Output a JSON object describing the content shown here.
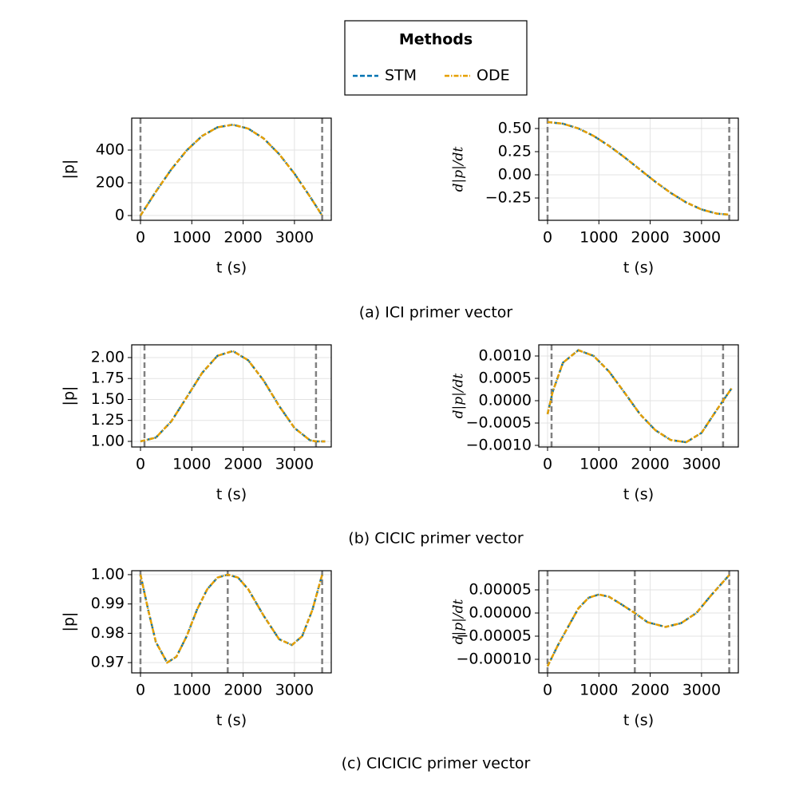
{
  "legend_title": "Methods",
  "captions": [
    "(a) ICI primer vector",
    "(b) CICIC primer vector",
    "(c) CICICIC primer vector"
  ],
  "chart_data": [
    {
      "type": "line",
      "xlabel": "t (s)",
      "ylabel": "|p|",
      "grid": true,
      "xlim": [
        -171,
        3717
      ],
      "ylim": [
        -29,
        595
      ],
      "xticks": [
        0,
        1000,
        2000,
        3000
      ],
      "yticks": [
        0,
        200,
        400
      ],
      "vlines": [
        0,
        3540
      ],
      "x": [
        0,
        300,
        600,
        900,
        1200,
        1500,
        1800,
        2100,
        2400,
        2700,
        3000,
        3300,
        3540
      ],
      "series": [
        {
          "name": "STM",
          "color": "#0072b2",
          "dash": "6 3",
          "values": [
            0,
            146,
            282,
            398,
            486,
            539,
            555,
            531,
            471,
            376,
            256,
            117,
            0
          ]
        },
        {
          "name": "ODE",
          "color": "#e69f00",
          "dash": "6 2 1.5 2",
          "values": [
            0,
            146,
            282,
            398,
            486,
            539,
            555,
            531,
            471,
            376,
            256,
            117,
            0
          ]
        }
      ]
    },
    {
      "type": "line",
      "xlabel": "t (s)",
      "ylabel": "d|p|/dt",
      "grid": true,
      "xlim": [
        -171,
        3717
      ],
      "ylim": [
        -0.491,
        0.612
      ],
      "xticks": [
        0,
        1000,
        2000,
        3000
      ],
      "yticks": [
        {
          "value": 0.5,
          "label": "0.50"
        },
        0.25,
        {
          "value": 0,
          "label": "0.00"
        },
        {
          "value": -0.25,
          "label": "−0.25"
        }
      ],
      "vlines": [
        0,
        3540
      ],
      "x": [
        0,
        300,
        600,
        900,
        1200,
        1500,
        1800,
        2100,
        2400,
        2700,
        3000,
        3300,
        3540
      ],
      "series": [
        {
          "name": "STM",
          "color": "#0072b2",
          "dash": "6 3",
          "values": [
            0.57,
            0.552,
            0.501,
            0.419,
            0.312,
            0.189,
            0.057,
            -0.075,
            -0.195,
            -0.298,
            -0.374,
            -0.419,
            -0.43
          ]
        },
        {
          "name": "ODE",
          "color": "#e69f00",
          "dash": "6 2 1.5 2",
          "values": [
            0.57,
            0.552,
            0.501,
            0.419,
            0.312,
            0.189,
            0.057,
            -0.075,
            -0.195,
            -0.298,
            -0.374,
            -0.419,
            -0.43
          ]
        }
      ]
    },
    {
      "type": "line",
      "xlabel": "t (s)",
      "ylabel": "|p|",
      "grid": true,
      "xlim": [
        -171,
        3717
      ],
      "ylim": [
        0.933,
        2.152
      ],
      "xticks": [
        0,
        1000,
        2000,
        3000
      ],
      "yticks": [
        {
          "value": 1,
          "label": "1.00"
        },
        1.25,
        {
          "value": 1.5,
          "label": "1.50"
        },
        1.75,
        {
          "value": 2,
          "label": "2.00"
        }
      ],
      "vlines": [
        78,
        3420
      ],
      "x": [
        0,
        300,
        600,
        900,
        1200,
        1500,
        1800,
        2100,
        2400,
        2700,
        3000,
        3300,
        3420,
        3600
      ],
      "series": [
        {
          "name": "STM",
          "color": "#0072b2",
          "dash": "6 3",
          "values": [
            1.0,
            1.045,
            1.238,
            1.525,
            1.816,
            2.021,
            2.078,
            1.967,
            1.725,
            1.424,
            1.16,
            1.014,
            1.0,
            1.0
          ]
        },
        {
          "name": "ODE",
          "color": "#e69f00",
          "dash": "6 2 1.5 2",
          "values": [
            1.0,
            1.045,
            1.238,
            1.525,
            1.816,
            2.021,
            2.078,
            1.967,
            1.725,
            1.424,
            1.16,
            1.014,
            1.0,
            1.0
          ]
        }
      ]
    },
    {
      "type": "line",
      "xlabel": "t (s)",
      "ylabel": "d|p|/dt",
      "grid": true,
      "xlim": [
        -171,
        3717
      ],
      "ylim": [
        -0.001036,
        0.00125
      ],
      "xticks": [
        0,
        1000,
        2000,
        3000
      ],
      "yticks": [
        {
          "value": 0.001,
          "label": "0.0010"
        },
        0.0005,
        {
          "value": 0,
          "label": "0.0000"
        },
        {
          "value": -0.0005,
          "label": "−0.0005"
        },
        {
          "value": -0.001,
          "label": "−0.0010"
        }
      ],
      "vlines": [
        78,
        3420
      ],
      "x": [
        0,
        100,
        300,
        600,
        900,
        1200,
        1500,
        1800,
        2100,
        2400,
        2700,
        3000,
        3300,
        3600
      ],
      "series": [
        {
          "name": "STM",
          "color": "#0072b2",
          "dash": "6 3",
          "values": [
            -0.0003,
            0.0002,
            0.00085,
            0.00113,
            0.001,
            0.00065,
            0.00018,
            -0.0003,
            -0.00066,
            -0.00088,
            -0.00093,
            -0.00072,
            -0.0002,
            0.0003
          ]
        },
        {
          "name": "ODE",
          "color": "#e69f00",
          "dash": "6 2 1.5 2",
          "values": [
            -0.0003,
            0.0002,
            0.00085,
            0.00113,
            0.001,
            0.00065,
            0.00018,
            -0.0003,
            -0.00066,
            -0.00088,
            -0.00093,
            -0.00072,
            -0.0002,
            0.0003
          ]
        }
      ]
    },
    {
      "type": "line",
      "xlabel": "t (s)",
      "ylabel": "|p|",
      "grid": true,
      "xlim": [
        -171,
        3717
      ],
      "ylim": [
        0.9665,
        1.00134
      ],
      "xticks": [
        0,
        1000,
        2000,
        3000
      ],
      "yticks": [
        0.97,
        0.98,
        0.99,
        {
          "value": 1,
          "label": "1.00"
        }
      ],
      "vlines": [
        0,
        1700,
        3540
      ],
      "x": [
        0,
        150,
        300,
        520,
        700,
        900,
        1100,
        1300,
        1500,
        1700,
        1900,
        2100,
        2400,
        2700,
        2950,
        3150,
        3350,
        3540
      ],
      "series": [
        {
          "name": "STM",
          "color": "#0072b2",
          "dash": "6 3",
          "values": [
            1.0,
            0.988,
            0.977,
            0.97,
            0.972,
            0.979,
            0.988,
            0.995,
            0.999,
            1.0,
            0.999,
            0.995,
            0.986,
            0.978,
            0.976,
            0.979,
            0.988,
            1.0
          ]
        },
        {
          "name": "ODE",
          "color": "#e69f00",
          "dash": "6 2 1.5 2",
          "values": [
            1.0,
            0.988,
            0.977,
            0.97,
            0.972,
            0.979,
            0.988,
            0.995,
            0.999,
            1.0,
            0.999,
            0.995,
            0.986,
            0.978,
            0.976,
            0.979,
            0.988,
            1.0
          ]
        }
      ]
    },
    {
      "type": "line",
      "xlabel": "t (s)",
      "ylabel": "d|p|/dt",
      "grid": true,
      "xlim": [
        -171,
        3717
      ],
      "ylim": [
        -0.0001293,
        9.14e-05
      ],
      "xticks": [
        0,
        1000,
        2000,
        3000
      ],
      "yticks": [
        5e-05,
        {
          "value": 0,
          "label": "0.00000"
        },
        {
          "value": -5e-05,
          "label": "−0.00005"
        },
        {
          "value": -0.0001,
          "label": "−0.00010"
        }
      ],
      "vlines": [
        0,
        1700,
        3540
      ],
      "x": [
        0,
        200,
        400,
        600,
        800,
        1000,
        1200,
        1450,
        1700,
        1950,
        2300,
        2600,
        2900,
        3200,
        3540
      ],
      "series": [
        {
          "name": "STM",
          "color": "#0072b2",
          "dash": "6 3",
          "values": [
            -0.000115,
            -7e-05,
            -3e-05,
            1e-05,
            3.3e-05,
            4e-05,
            3.5e-05,
            1.8e-05,
            0.0,
            -2e-05,
            -3e-05,
            -2.2e-05,
            0.0,
            4e-05,
            8.2e-05
          ]
        },
        {
          "name": "ODE",
          "color": "#e69f00",
          "dash": "6 2 1.5 2",
          "values": [
            -0.000115,
            -7e-05,
            -3e-05,
            1e-05,
            3.3e-05,
            4e-05,
            3.5e-05,
            1.8e-05,
            0.0,
            -2e-05,
            -3e-05,
            -2.2e-05,
            0.0,
            4e-05,
            8.2e-05
          ]
        }
      ]
    }
  ]
}
